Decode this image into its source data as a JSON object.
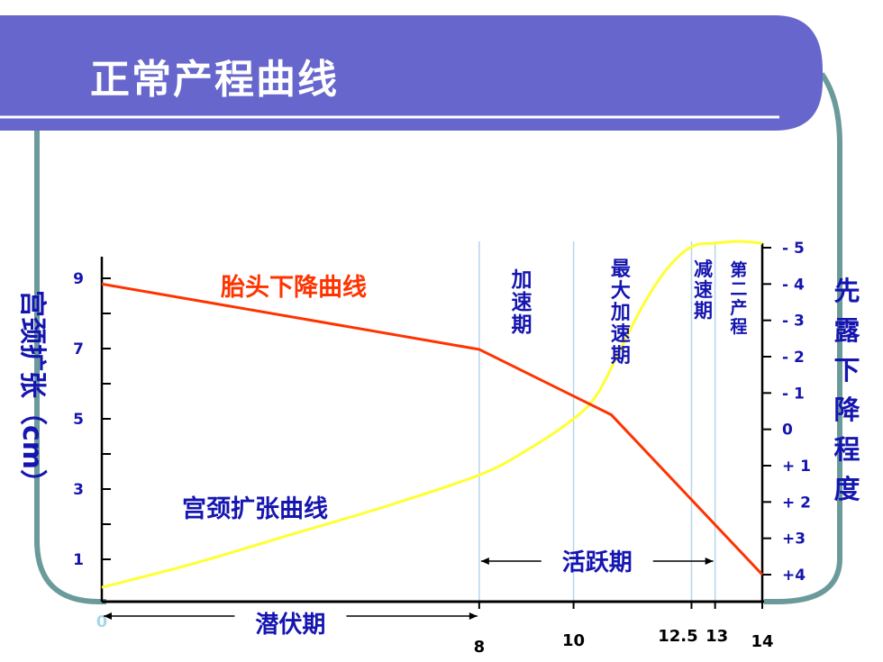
{
  "slide": {
    "title": "正常产程曲线"
  },
  "colors": {
    "header_bg": "#6666cc",
    "frame": "#6b9a9a",
    "axis_text": "#1515b0",
    "descent_curve": "#ff3300",
    "dilation_curve": "#ffff33",
    "phase_lines": "#b8d4ec"
  },
  "chart_data": {
    "type": "line",
    "x_ticks": [
      {
        "value": 0,
        "label": "0"
      },
      {
        "value": 8,
        "label": "8"
      },
      {
        "value": 10,
        "label": "10"
      },
      {
        "value": 12.5,
        "label": "12.5"
      },
      {
        "value": 13,
        "label": "13"
      },
      {
        "value": 14,
        "label": "14"
      }
    ],
    "xlim": [
      0,
      14
    ],
    "left_axis": {
      "label": "宫颈扩张（cm）",
      "ylim": [
        0,
        10
      ],
      "ticks": [
        {
          "value": 1,
          "label": "1"
        },
        {
          "value": 3,
          "label": "3"
        },
        {
          "value": 5,
          "label": "5"
        },
        {
          "value": 7,
          "label": "7"
        },
        {
          "value": 9,
          "label": "9"
        }
      ]
    },
    "right_axis": {
      "label": "先露下降程度",
      "ticks": [
        {
          "value": -5,
          "label": "- 5"
        },
        {
          "value": -4,
          "label": "- 4"
        },
        {
          "value": -3,
          "label": "- 3"
        },
        {
          "value": -2,
          "label": "- 2"
        },
        {
          "value": -1,
          "label": "- 1"
        },
        {
          "value": 0,
          "label": "0"
        },
        {
          "value": 1,
          "label": "+ 1"
        },
        {
          "value": 2,
          "label": "+ 2"
        },
        {
          "value": 3,
          "label": "+3"
        },
        {
          "value": 4,
          "label": "+4"
        }
      ]
    },
    "series": [
      {
        "name": "宫颈扩张曲线",
        "axis": "left",
        "points": [
          [
            0,
            0.2
          ],
          [
            2,
            0.9
          ],
          [
            4,
            1.7
          ],
          [
            6,
            2.5
          ],
          [
            8,
            3.4
          ],
          [
            9,
            4.1
          ],
          [
            10,
            5.0
          ],
          [
            10.5,
            5.7
          ],
          [
            11,
            7.0
          ],
          [
            11.5,
            8.3
          ],
          [
            12,
            9.3
          ],
          [
            12.5,
            9.9
          ],
          [
            13,
            10.0
          ],
          [
            13.5,
            10.05
          ],
          [
            14,
            10.0
          ]
        ]
      },
      {
        "name": "胎头下降曲线",
        "axis": "right",
        "points": [
          [
            0,
            -4
          ],
          [
            8,
            -2.2
          ],
          [
            10.8,
            -0.4
          ],
          [
            14,
            4
          ]
        ]
      }
    ],
    "phase_labels": [
      {
        "label": "加速期",
        "x": 8.9
      },
      {
        "label": "最大加速期",
        "x": 11.0
      },
      {
        "label": "减速期",
        "x": 12.75
      },
      {
        "label": "第二产程",
        "x": 13.5
      }
    ],
    "phase_lines_x": [
      8,
      10,
      12.5,
      13
    ],
    "spans": [
      {
        "label": "潜伏期",
        "from": 0,
        "to": 8
      },
      {
        "label": "活跃期",
        "from": 8,
        "to": 13
      }
    ]
  }
}
